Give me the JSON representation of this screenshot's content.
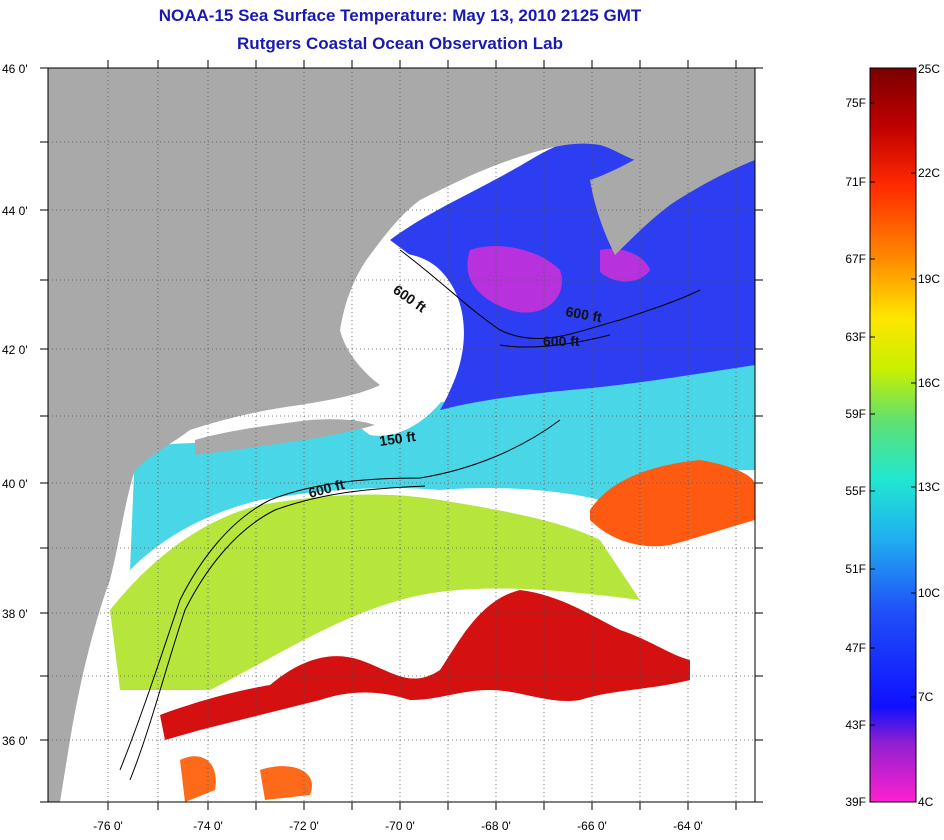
{
  "title": {
    "line1": "NOAA-15 Sea Surface Temperature:  May 13, 2010 2125 GMT",
    "line2": "Rutgers Coastal Ocean Observation Lab"
  },
  "map": {
    "lat_labels": [
      "46 0'",
      "44 0'",
      "42 0'",
      "40 0'",
      "38 0'",
      "36 0'"
    ],
    "lon_labels": [
      "-76 0'",
      "-74 0'",
      "-72 0'",
      "-70 0'",
      "-68 0'",
      "-66 0'",
      "-64 0'"
    ],
    "depth_labels": [
      "600 ft",
      "600 ft",
      "600 ft",
      "150 ft",
      "600 ft"
    ]
  },
  "colorbar": {
    "fahrenheit": [
      "75F",
      "71F",
      "67F",
      "63F",
      "59F",
      "55F",
      "51F",
      "47F",
      "43F",
      "39F"
    ],
    "celsius": [
      "25C",
      "22C",
      "19C",
      "16C",
      "13C",
      "10C",
      "7C",
      "4C"
    ]
  },
  "colors": {
    "title": "#1a1ab0",
    "land": "#a9a9a9",
    "cloud": "#ffffff"
  }
}
